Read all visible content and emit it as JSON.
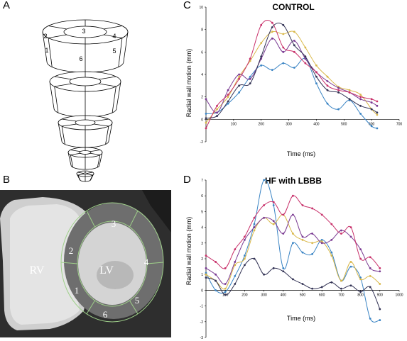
{
  "panels": {
    "a": {
      "letter": "A",
      "top_ring_segments": [
        "1",
        "2",
        "3",
        "4",
        "5",
        "6"
      ]
    },
    "b": {
      "letter": "B",
      "rv_label": "RV",
      "lv_label": "LV",
      "segments": [
        "1",
        "2",
        "3",
        "4",
        "5",
        "6"
      ]
    },
    "c": {
      "letter": "C"
    },
    "d": {
      "letter": "D"
    }
  },
  "colors": {
    "blue": "#3a84c4",
    "purple": "#7a3a92",
    "pink": "#c8306a",
    "yellow": "#d9b84a",
    "dark": "#333355",
    "mri_bg": "#3a3a3a",
    "mri_contour": "#9fd08a"
  },
  "chart_data": [
    {
      "type": "line",
      "title": "CONTROL",
      "xlabel": "Time (ms)",
      "ylabel": "Radial wall motion (mm)",
      "xlim": [
        0,
        700
      ],
      "ylim": [
        -2,
        10
      ],
      "x_ticks": [
        "100",
        "200",
        "300",
        "400",
        "500",
        "600",
        "700"
      ],
      "y_ticks": [
        "-2",
        "0",
        "2",
        "4",
        "6",
        "8",
        "10"
      ],
      "grid": false,
      "series": [
        {
          "color": "#3a84c4",
          "x": [
            0,
            40,
            80,
            120,
            160,
            200,
            240,
            280,
            320,
            360,
            400,
            440,
            480,
            520,
            560,
            600,
            620
          ],
          "y": [
            0.5,
            0.6,
            1.4,
            2.4,
            3.8,
            4.8,
            4.4,
            5.0,
            4.6,
            5.4,
            3.2,
            1.4,
            0.9,
            1.7,
            0.5,
            -0.6,
            -0.8
          ]
        },
        {
          "color": "#d9b84a",
          "x": [
            0,
            40,
            80,
            120,
            160,
            200,
            240,
            280,
            320,
            360,
            400,
            440,
            480,
            520,
            560,
            600,
            620
          ],
          "y": [
            -0.3,
            0.9,
            2.0,
            3.8,
            5.2,
            6.8,
            7.8,
            7.6,
            7.8,
            6.4,
            4.8,
            3.8,
            2.9,
            2.6,
            2.2,
            0.9,
            0.4
          ]
        },
        {
          "color": "#7a3a92",
          "x": [
            0,
            40,
            80,
            120,
            160,
            200,
            240,
            280,
            320,
            360,
            400,
            440,
            480,
            520,
            560,
            600,
            620
          ],
          "y": [
            1.8,
            0.6,
            2.6,
            4.0,
            3.6,
            5.4,
            7.2,
            6.0,
            7.0,
            5.4,
            4.2,
            3.4,
            2.8,
            2.4,
            1.8,
            1.5,
            1.2
          ]
        },
        {
          "color": "#c8306a",
          "x": [
            0,
            40,
            80,
            120,
            160,
            200,
            240,
            280,
            320,
            360,
            400,
            440,
            480,
            520,
            560,
            600,
            620
          ],
          "y": [
            -0.8,
            1.2,
            2.2,
            3.6,
            5.4,
            8.4,
            8.6,
            6.4,
            6.0,
            5.0,
            4.2,
            3.0,
            2.6,
            2.4,
            2.0,
            1.8,
            1.6
          ]
        },
        {
          "color": "#333355",
          "x": [
            0,
            40,
            80,
            120,
            160,
            200,
            240,
            280,
            320,
            360,
            400,
            440,
            480,
            520,
            560,
            600,
            620
          ],
          "y": [
            0.1,
            0.3,
            1.6,
            3.0,
            3.2,
            5.6,
            8.2,
            8.4,
            6.6,
            5.6,
            3.8,
            2.6,
            2.4,
            1.8,
            1.2,
            0.9,
            0.6
          ]
        }
      ]
    },
    {
      "type": "line",
      "title": "HF with LBBB",
      "xlabel": "Time (ms)",
      "ylabel": "Radial wall motion (mm)",
      "xlim": [
        0,
        1000
      ],
      "ylim": [
        -3,
        7
      ],
      "x_ticks": [
        "100",
        "200",
        "300",
        "400",
        "500",
        "600",
        "700",
        "800",
        "900",
        "1000"
      ],
      "y_ticks": [
        "-3",
        "-2",
        "-1",
        "0",
        "1",
        "2",
        "3",
        "4",
        "5",
        "6",
        "7"
      ],
      "grid": false,
      "series": [
        {
          "color": "#3a84c4",
          "x": [
            0,
            50,
            100,
            150,
            200,
            250,
            300,
            350,
            400,
            450,
            500,
            550,
            600,
            650,
            700,
            750,
            800,
            850,
            900
          ],
          "y": [
            1.1,
            0.0,
            -0.1,
            0.9,
            2.2,
            4.2,
            7.0,
            5.4,
            1.4,
            3.0,
            2.4,
            2.3,
            3.2,
            2.4,
            0.6,
            1.5,
            0.8,
            -1.8,
            -1.9
          ]
        },
        {
          "color": "#d9b84a",
          "x": [
            0,
            50,
            100,
            150,
            200,
            250,
            300,
            350,
            400,
            450,
            500,
            550,
            600,
            650,
            700,
            750,
            800,
            850,
            900
          ],
          "y": [
            1.0,
            0.6,
            0.1,
            1.6,
            2.0,
            3.8,
            4.6,
            4.2,
            4.8,
            3.6,
            3.2,
            3.0,
            3.1,
            2.2,
            0.6,
            1.8,
            0.7,
            0.9,
            0.4
          ]
        },
        {
          "color": "#7a3a92",
          "x": [
            0,
            50,
            100,
            150,
            200,
            250,
            300,
            350,
            400,
            450,
            500,
            550,
            600,
            650,
            700,
            750,
            800,
            850,
            900
          ],
          "y": [
            1.4,
            1.0,
            0.4,
            1.8,
            3.2,
            4.0,
            4.6,
            4.4,
            3.6,
            4.8,
            3.4,
            3.6,
            3.0,
            3.2,
            3.8,
            3.4,
            2.6,
            1.4,
            1.2
          ]
        },
        {
          "color": "#c8306a",
          "x": [
            0,
            50,
            100,
            150,
            200,
            250,
            300,
            350,
            400,
            450,
            500,
            550,
            600,
            650,
            700,
            750,
            800,
            850,
            900
          ],
          "y": [
            2.2,
            1.8,
            1.4,
            2.6,
            3.4,
            4.6,
            5.4,
            5.6,
            4.8,
            6.0,
            5.4,
            5.2,
            4.8,
            4.2,
            3.6,
            4.0,
            2.0,
            2.1,
            1.4
          ]
        },
        {
          "color": "#333355",
          "x": [
            0,
            50,
            100,
            150,
            200,
            250,
            300,
            350,
            400,
            450,
            500,
            550,
            600,
            650,
            700,
            750,
            800,
            850,
            900
          ],
          "y": [
            0.8,
            0.6,
            -0.3,
            0.4,
            1.6,
            2.0,
            1.0,
            1.4,
            1.2,
            0.7,
            0.4,
            0.1,
            0.2,
            0.5,
            0.1,
            0.3,
            -0.1,
            0.2,
            -1.2
          ]
        }
      ]
    }
  ]
}
